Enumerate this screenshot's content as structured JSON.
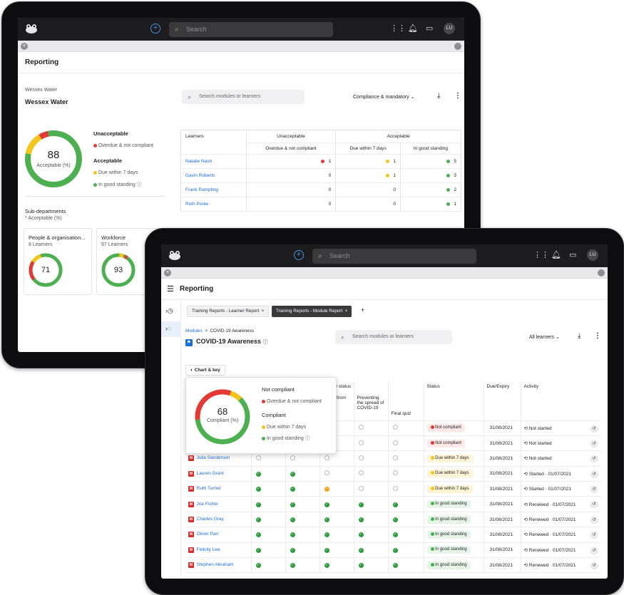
{
  "back": {
    "topbar": {
      "search_placeholder": "Search",
      "avatar": "LU"
    },
    "page_title": "Reporting",
    "org": {
      "parent": "Wessex Water",
      "name": "Wessex Water"
    },
    "search_placeholder": "Search modules or learners",
    "filter": "Compliance & mandatory",
    "donut": {
      "value": "88",
      "label": "Acceptable (%)"
    },
    "legend": {
      "unacceptable_title": "Unacceptable",
      "overdue": "Overdue & not compliant",
      "acceptable_title": "Acceptable",
      "due": "Due within 7 days",
      "good": "In good standing"
    },
    "table": {
      "h_learners": "Learners",
      "h_unacceptable": "Unacceptable",
      "h_acceptable": "Acceptable",
      "h_overdue": "Overdue & not compliant",
      "h_due": "Due within 7 days",
      "h_good": "In good standing",
      "rows": [
        {
          "name": "Natalie Nash",
          "overdue": "1",
          "due": "1",
          "good": "5"
        },
        {
          "name": "Gavin Roberts",
          "overdue": "0",
          "due": "1",
          "good": "3"
        },
        {
          "name": "Frank Rampling",
          "overdue": "0",
          "due": "0",
          "good": "2"
        },
        {
          "name": "Ruth Poole",
          "overdue": "0",
          "due": "0",
          "good": "1"
        }
      ]
    },
    "subdepts": {
      "title": "Sub-departments",
      "note": "* Acceptable (%)",
      "cards": [
        {
          "name": "People & organisation...",
          "learners": "8 Learners",
          "value": "71"
        },
        {
          "name": "Workforce",
          "learners": "97 Learners",
          "value": "93"
        }
      ]
    }
  },
  "front": {
    "topbar": {
      "search_placeholder": "Search",
      "avatar": "LU"
    },
    "page_title": "Reporting",
    "tabs": [
      "Training Reports - Learner Report",
      "Training Reports - Module Report"
    ],
    "breadcrumb": {
      "root": "Modules",
      "sep": ">",
      "current": "COVID-19 Awareness"
    },
    "module_title": "COVID-19 Awareness",
    "search_placeholder": "Search modules or learners",
    "filter": "All learners",
    "chart_key_label": "Chart & key",
    "popup": {
      "value": "68",
      "label": "Compliant (%)",
      "not_compliant_title": "Not compliant",
      "overdue": "Overdue & not compliant",
      "compliant_title": "Compliant",
      "due": "Due within 7 days",
      "good": "In good standing"
    },
    "table": {
      "h_activity_status": "Activity status",
      "h_col_working": "orking from\nand in\noffice",
      "h_col_preventing": "Preventing\nthe spread of\nCOVID-19",
      "h_col_quiz": "Final quiz",
      "h_status": "Status",
      "h_due": "Due/Expiry",
      "h_activity": "Activity",
      "rows": [
        {
          "name": "",
          "status": "Not compliant",
          "due": "31/08/2021",
          "activity": "Not started"
        },
        {
          "name": "",
          "status": "Not compliant",
          "due": "31/08/2021",
          "activity": "Not started"
        },
        {
          "name": "Julia Sanderson",
          "status": "Due within 7 days",
          "due": "31/08/2021",
          "activity": "Not started"
        },
        {
          "name": "Lauren Grant",
          "status": "Due within 7 days",
          "due": "31/08/2021",
          "activity": "Started · 01/07/2021"
        },
        {
          "name": "Ruth Turner",
          "status": "Due within 7 days",
          "due": "31/08/2021",
          "activity": "Started · 01/07/2021"
        },
        {
          "name": "Joe Fisher",
          "status": "In good standing",
          "due": "31/08/2021",
          "activity": "Renewed · 01/07/2021"
        },
        {
          "name": "Charles Gray",
          "status": "In good standing",
          "due": "31/08/2021",
          "activity": "Renewed · 01/07/2021"
        },
        {
          "name": "Oliver Parr",
          "status": "In good standing",
          "due": "31/08/2021",
          "activity": "Renewed · 01/07/2021"
        },
        {
          "name": "Felicity Lee",
          "status": "In good standing",
          "due": "31/08/2021",
          "activity": "Renewed · 01/07/2021"
        },
        {
          "name": "Stephen Abraham",
          "status": "In good standing",
          "due": "31/08/2021",
          "activity": "Renewed · 01/07/2021"
        }
      ]
    }
  },
  "colors": {
    "red": "#e53935",
    "yellow": "#f5c518",
    "green": "#4caf50",
    "link": "#1a6ed8"
  }
}
